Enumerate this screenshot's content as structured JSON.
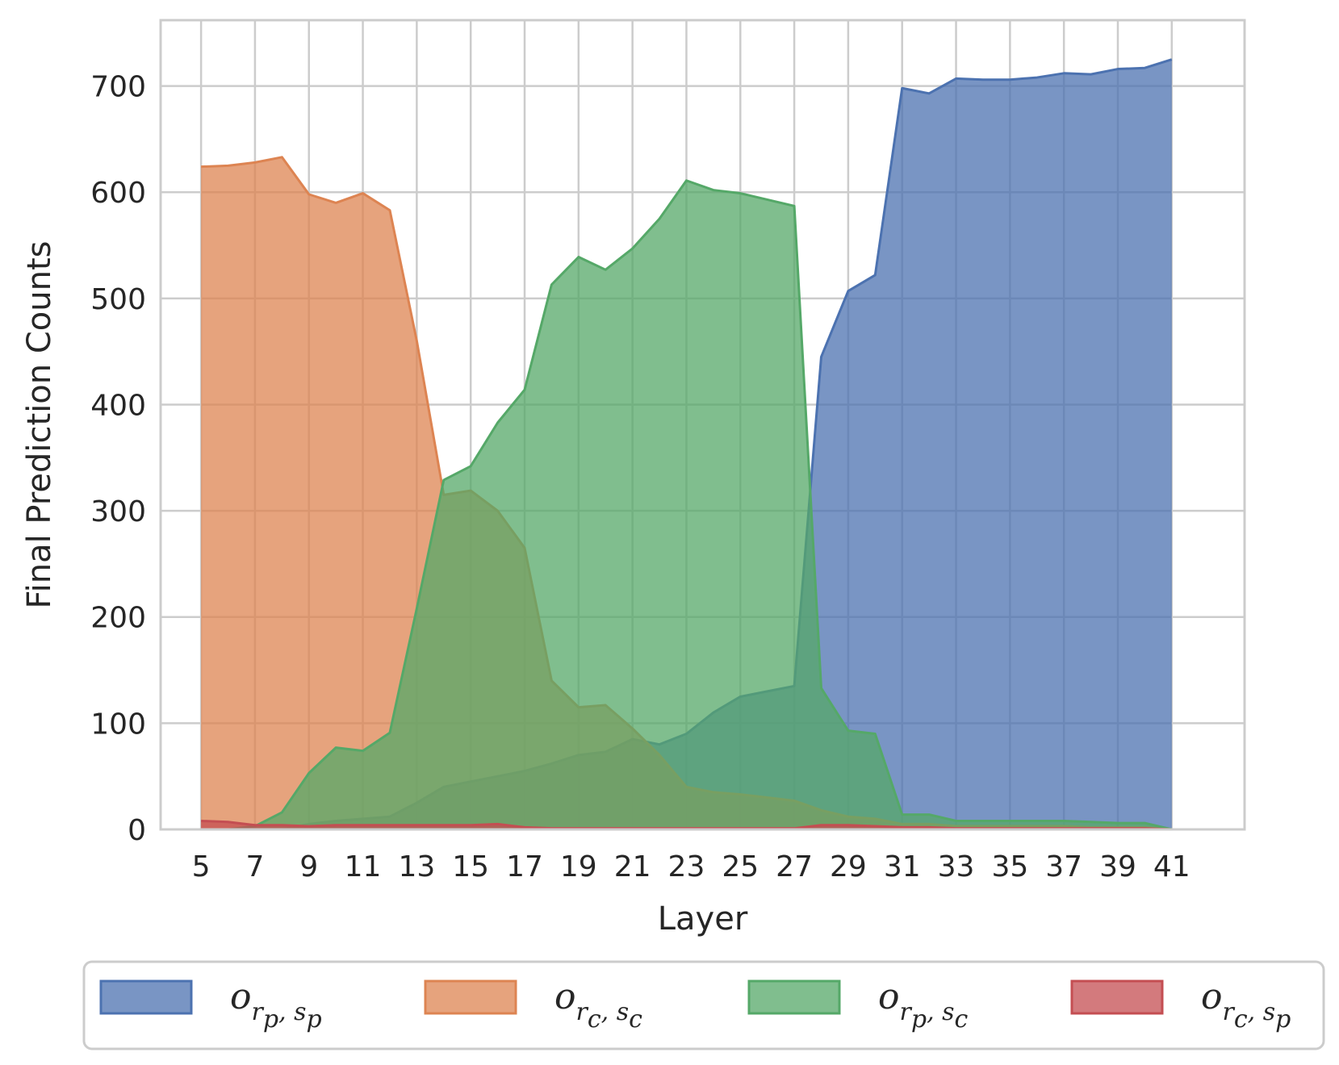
{
  "chart_data": {
    "type": "area",
    "xlabel": "Layer",
    "ylabel": "Final Prediction Counts",
    "xlim": [
      3.5,
      43.7
    ],
    "ylim": [
      0,
      762
    ],
    "xticks": [
      5,
      7,
      9,
      11,
      13,
      15,
      17,
      19,
      21,
      23,
      25,
      27,
      29,
      31,
      33,
      35,
      37,
      39,
      41
    ],
    "yticks": [
      0,
      100,
      200,
      300,
      400,
      500,
      600,
      700
    ],
    "grid": true,
    "legend": "bottom",
    "x": [
      5,
      6,
      7,
      8,
      9,
      10,
      11,
      12,
      13,
      14,
      15,
      16,
      17,
      18,
      19,
      20,
      21,
      22,
      23,
      24,
      25,
      26,
      27,
      28,
      29,
      30,
      31,
      32,
      33,
      34,
      35,
      36,
      37,
      38,
      39,
      40,
      41
    ],
    "series": [
      {
        "name": "o",
        "sub1": "r",
        "sub1s": "p",
        "sub2": "s",
        "sub2s": "p",
        "color": "#4C72B0",
        "values": [
          0,
          0,
          0,
          0,
          5,
          8,
          10,
          12,
          25,
          40,
          45,
          50,
          55,
          62,
          70,
          73,
          85,
          80,
          90,
          110,
          125,
          130,
          135,
          445,
          507,
          522,
          698,
          693,
          707,
          706,
          706,
          708,
          712,
          711,
          716,
          717,
          725
        ]
      },
      {
        "name": "o",
        "sub1": "r",
        "sub1s": "c",
        "sub2": "s",
        "sub2s": "c",
        "color": "#DD8452",
        "values": [
          624,
          625,
          628,
          633,
          598,
          590,
          599,
          583,
          460,
          315,
          319,
          300,
          265,
          140,
          115,
          117,
          95,
          70,
          40,
          35,
          33,
          30,
          27,
          18,
          12,
          10,
          5,
          5,
          3,
          3,
          3,
          3,
          3,
          2,
          2,
          2,
          0
        ]
      },
      {
        "name": "o",
        "sub1": "r",
        "sub1s": "p",
        "sub2": "s",
        "sub2s": "c",
        "color": "#55A868",
        "values": [
          0,
          0,
          3,
          16,
          53,
          77,
          74,
          91,
          208,
          329,
          342,
          383,
          414,
          513,
          539,
          527,
          547,
          575,
          611,
          602,
          599,
          593,
          587,
          133,
          93,
          90,
          14,
          14,
          8,
          8,
          8,
          8,
          8,
          7,
          6,
          6,
          0
        ]
      },
      {
        "name": "o",
        "sub1": "r",
        "sub1s": "c",
        "sub2": "s",
        "sub2s": "p",
        "color": "#C44E52",
        "values": [
          8,
          7,
          4,
          4,
          3,
          4,
          4,
          4,
          4,
          4,
          4,
          5,
          2,
          1,
          1,
          1,
          1,
          1,
          1,
          1,
          1,
          1,
          1,
          4,
          4,
          3,
          2,
          2,
          1,
          1,
          1,
          1,
          1,
          1,
          1,
          1,
          0
        ]
      }
    ]
  }
}
